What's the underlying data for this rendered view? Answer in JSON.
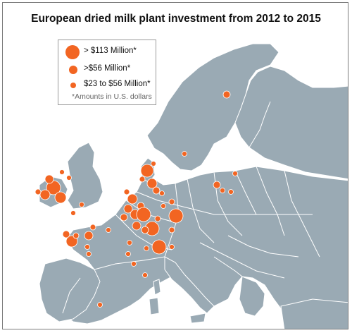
{
  "title": "European dried milk plant investment from 2012 to 2015",
  "legend": {
    "items": [
      {
        "label": "> $113 Million*",
        "tier": "large"
      },
      {
        "label": ">$56 Million*",
        "tier": "medium"
      },
      {
        "label": "$23 to $56 Million*",
        "tier": "small"
      }
    ],
    "note": "*Amounts in U.S. dollars"
  },
  "colors": {
    "sea": "#ffffff",
    "land": "#9aaab4",
    "border": "#ffffff",
    "marker": "#f26522"
  }
}
